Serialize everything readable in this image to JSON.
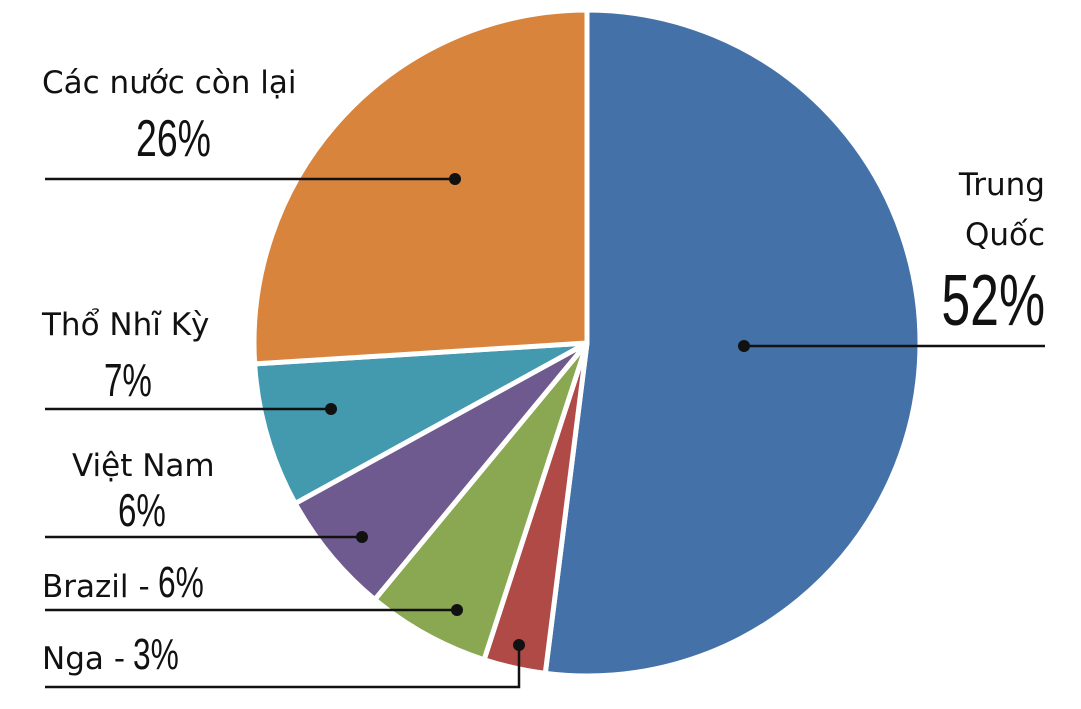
{
  "chart_data": {
    "type": "pie",
    "categories": [
      "Trung Quốc",
      "Nga",
      "Brazil",
      "Việt Nam",
      "Thổ Nhĩ Kỳ",
      "Các nước còn lại"
    ],
    "values": [
      52,
      3,
      6,
      6,
      7,
      26
    ],
    "value_labels": [
      "52%",
      "3%",
      "6%",
      "6%",
      "7%",
      "26%"
    ],
    "label_separator": "-",
    "colors": [
      "#4472a8",
      "#b04a47",
      "#8aa852",
      "#6e5a8e",
      "#4399ae",
      "#d9843d"
    ]
  }
}
